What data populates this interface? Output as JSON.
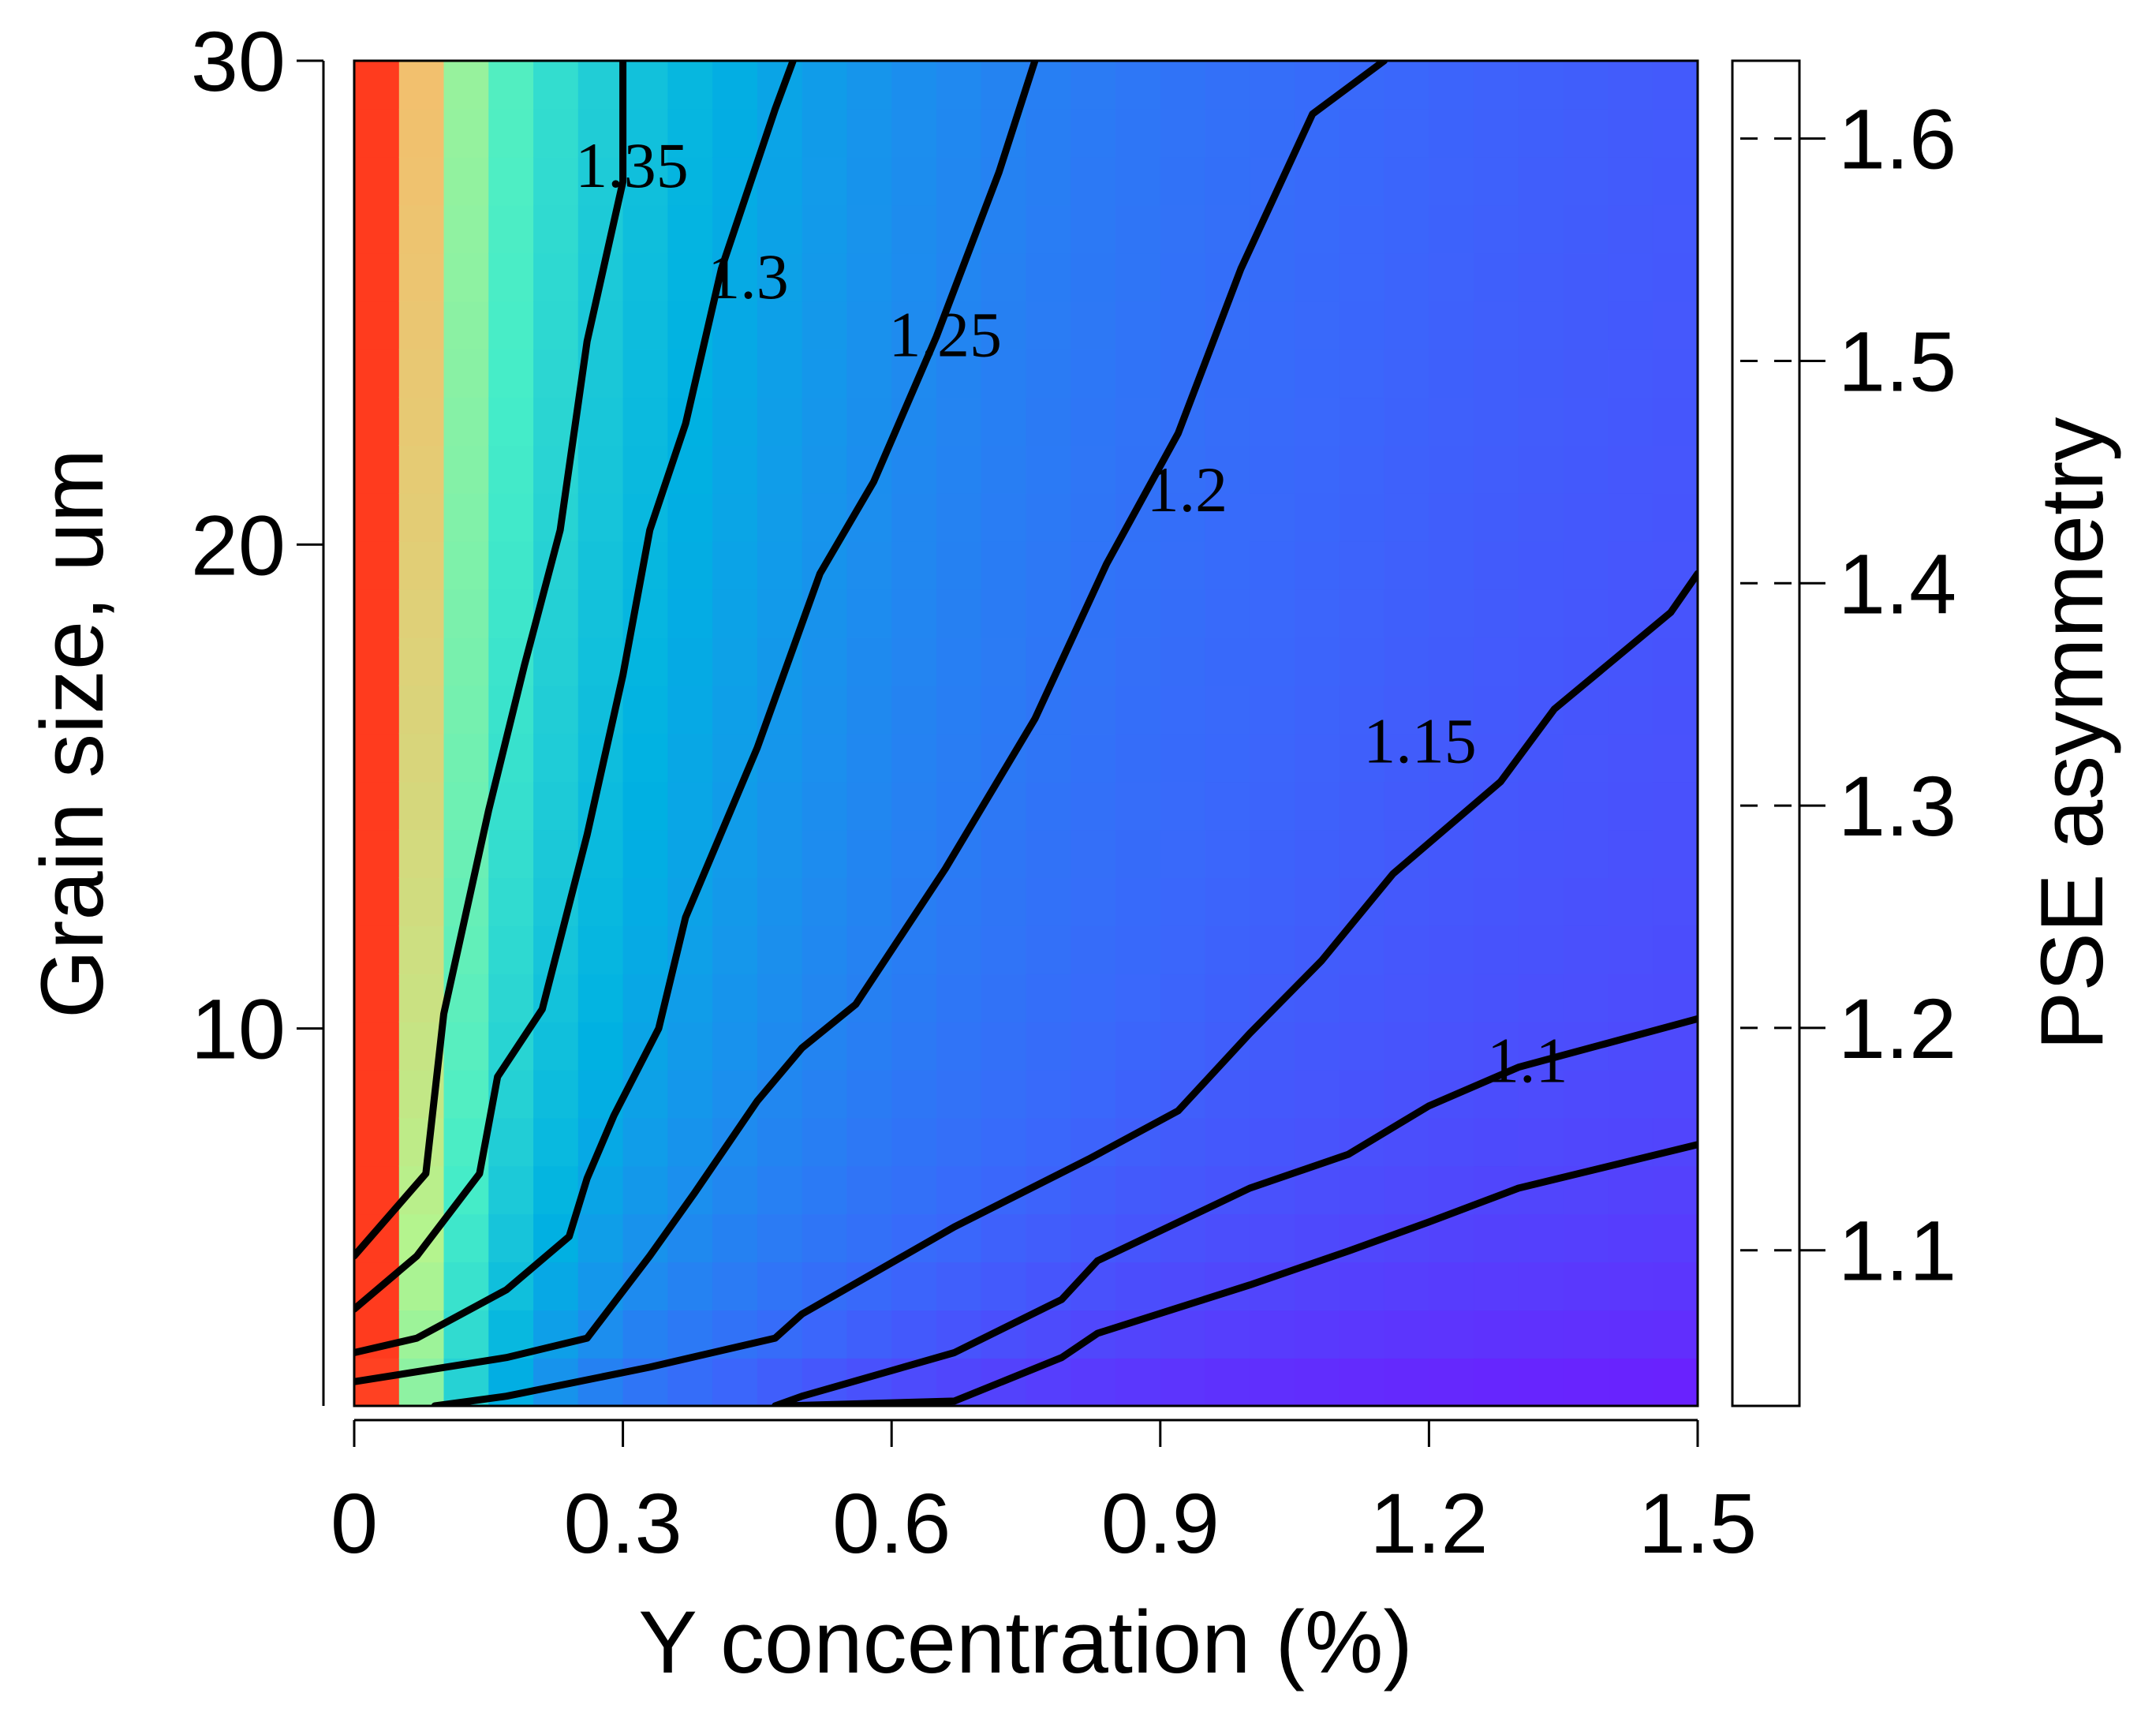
{
  "chart_data": {
    "type": "heatmap",
    "subtype": "filled-contour",
    "xlabel": "Y concentration (%)",
    "ylabel": "Grain size, um",
    "xlim": [
      0,
      1.5
    ],
    "ylim": [
      2.2,
      30
    ],
    "x_ticks": [
      {
        "value": 0,
        "label": "0"
      },
      {
        "value": 0.3,
        "label": "0.3"
      },
      {
        "value": 0.6,
        "label": "0.6"
      },
      {
        "value": 0.9,
        "label": "0.9"
      },
      {
        "value": 1.2,
        "label": "1.2"
      },
      {
        "value": 1.5,
        "label": "1.5"
      }
    ],
    "y_ticks": [
      {
        "value": 10,
        "label": "10"
      },
      {
        "value": 20,
        "label": "20"
      },
      {
        "value": 30,
        "label": "30"
      }
    ],
    "colorbar": {
      "label": "PSE asymmetry",
      "range": [
        1.03,
        1.635
      ],
      "ticks": [
        {
          "value": 1.1,
          "label": "1.1"
        },
        {
          "value": 1.2,
          "label": "1.2"
        },
        {
          "value": 1.3,
          "label": "1.3"
        },
        {
          "value": 1.4,
          "label": "1.4"
        },
        {
          "value": 1.5,
          "label": "1.5"
        },
        {
          "value": 1.6,
          "label": "1.6"
        }
      ]
    },
    "grid": {
      "x_cells": 30,
      "y_cells": 28
    },
    "colormap": [
      "#8000ff",
      "#3a67fb",
      "#00b1e2",
      "#46edc8",
      "#b3f48e",
      "#f9ba6a",
      "#ff3b1e"
    ],
    "contours": [
      {
        "level": 1.4,
        "label": "",
        "points": [
          [
            0,
            5.3
          ],
          [
            0.08,
            7.0
          ],
          [
            0.1,
            10.3
          ],
          [
            0.15,
            14.5
          ],
          [
            0.19,
            17.5
          ],
          [
            0.23,
            20.3
          ],
          [
            0.26,
            24.2
          ],
          [
            0.3,
            27.5
          ],
          [
            0.3,
            30
          ]
        ]
      },
      {
        "level": 1.35,
        "label": "1.35",
        "label_at": [
          0.31,
          27.7
        ],
        "points": [
          [
            0,
            4.2
          ],
          [
            0.07,
            5.3
          ],
          [
            0.14,
            7.0
          ],
          [
            0.16,
            9.0
          ],
          [
            0.21,
            10.4
          ],
          [
            0.26,
            14.0
          ],
          [
            0.3,
            17.3
          ],
          [
            0.33,
            20.3
          ],
          [
            0.37,
            22.5
          ],
          [
            0.41,
            25.7
          ],
          [
            0.47,
            29.0
          ],
          [
            0.49,
            30
          ]
        ]
      },
      {
        "level": 1.3,
        "label": "1.3",
        "label_at": [
          0.44,
          25.4
        ],
        "points": [
          [
            0,
            3.3
          ],
          [
            0.07,
            3.6
          ],
          [
            0.17,
            4.6
          ],
          [
            0.24,
            5.7
          ],
          [
            0.26,
            6.9
          ],
          [
            0.29,
            8.2
          ],
          [
            0.34,
            10.0
          ],
          [
            0.37,
            12.3
          ],
          [
            0.45,
            15.8
          ],
          [
            0.52,
            19.4
          ],
          [
            0.58,
            21.3
          ],
          [
            0.65,
            24.3
          ],
          [
            0.72,
            27.7
          ],
          [
            0.76,
            30
          ]
        ]
      },
      {
        "level": 1.25,
        "label": "1.25",
        "label_at": [
          0.66,
          24.2
        ],
        "points": [
          [
            0,
            2.7
          ],
          [
            0.17,
            3.2
          ],
          [
            0.26,
            3.6
          ],
          [
            0.33,
            5.3
          ],
          [
            0.38,
            6.6
          ],
          [
            0.45,
            8.5
          ],
          [
            0.5,
            9.6
          ],
          [
            0.56,
            10.5
          ],
          [
            0.66,
            13.3
          ],
          [
            0.76,
            16.4
          ],
          [
            0.84,
            19.6
          ],
          [
            0.92,
            22.3
          ],
          [
            0.99,
            25.7
          ],
          [
            1.07,
            28.9
          ],
          [
            1.15,
            30
          ]
        ]
      },
      {
        "level": 1.2,
        "label": "1.2",
        "label_at": [
          0.93,
          21.0
        ],
        "points": [
          [
            0.09,
            2.2
          ],
          [
            0.17,
            2.4
          ],
          [
            0.33,
            3.0
          ],
          [
            0.47,
            3.6
          ],
          [
            0.5,
            4.1
          ],
          [
            0.67,
            5.9
          ],
          [
            0.82,
            7.3
          ],
          [
            0.92,
            8.3
          ],
          [
            1.0,
            9.9
          ],
          [
            1.08,
            11.4
          ],
          [
            1.16,
            13.2
          ],
          [
            1.28,
            15.1
          ],
          [
            1.34,
            16.6
          ],
          [
            1.47,
            18.6
          ],
          [
            1.5,
            19.4
          ]
        ]
      },
      {
        "level": 1.15,
        "label": "1.15",
        "label_at": [
          1.19,
          15.8
        ],
        "points": [
          [
            0.48,
            2.2
          ],
          [
            0.67,
            2.3
          ],
          [
            0.79,
            3.2
          ],
          [
            0.83,
            3.7
          ],
          [
            1.0,
            4.7
          ],
          [
            1.11,
            5.4
          ],
          [
            1.2,
            6.0
          ],
          [
            1.3,
            6.7
          ],
          [
            1.5,
            7.6
          ]
        ]
      },
      {
        "level": 1.1,
        "label": "1.1",
        "label_at": [
          1.31,
          9.2
        ],
        "points": []
      }
    ]
  }
}
